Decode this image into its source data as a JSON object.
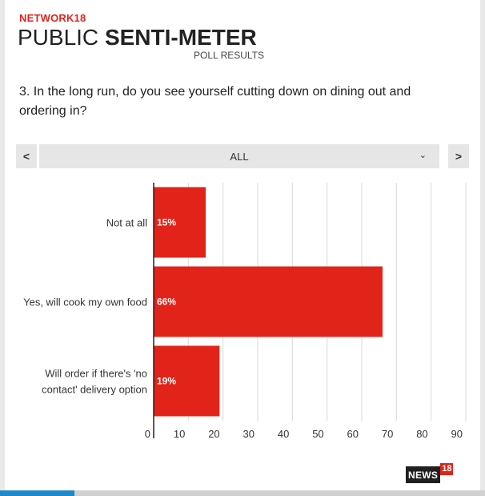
{
  "header": {
    "brand": "NETWORK18",
    "title_light": "PUBLIC ",
    "title_bold": "SENTI-METER",
    "subtitle": "POLL RESULTS"
  },
  "question": "3. In the long run, do you see yourself cutting down on dining out and ordering in?",
  "selector": {
    "prev_label": "<",
    "next_label": ">",
    "value": "ALL",
    "chevron": "chevron-down-icon"
  },
  "chart_data": {
    "type": "bar",
    "orientation": "horizontal",
    "categories": [
      [
        "Not at all"
      ],
      [
        "Yes, will cook my own food"
      ],
      [
        "Will order if there's 'no",
        "contact' delivery option"
      ]
    ],
    "values": [
      15,
      66,
      19
    ],
    "data_labels": [
      "15%",
      "66%",
      "19%"
    ],
    "xlim": [
      0,
      90
    ],
    "xticks": [
      0,
      10,
      20,
      30,
      40,
      50,
      60,
      70,
      80,
      90
    ],
    "grid": true,
    "bar_color": "#e2231a"
  },
  "logo": {
    "word": "NEWS",
    "number": "18"
  },
  "colors": {
    "accent": "#e2231a",
    "progress": "#1e88c8"
  }
}
